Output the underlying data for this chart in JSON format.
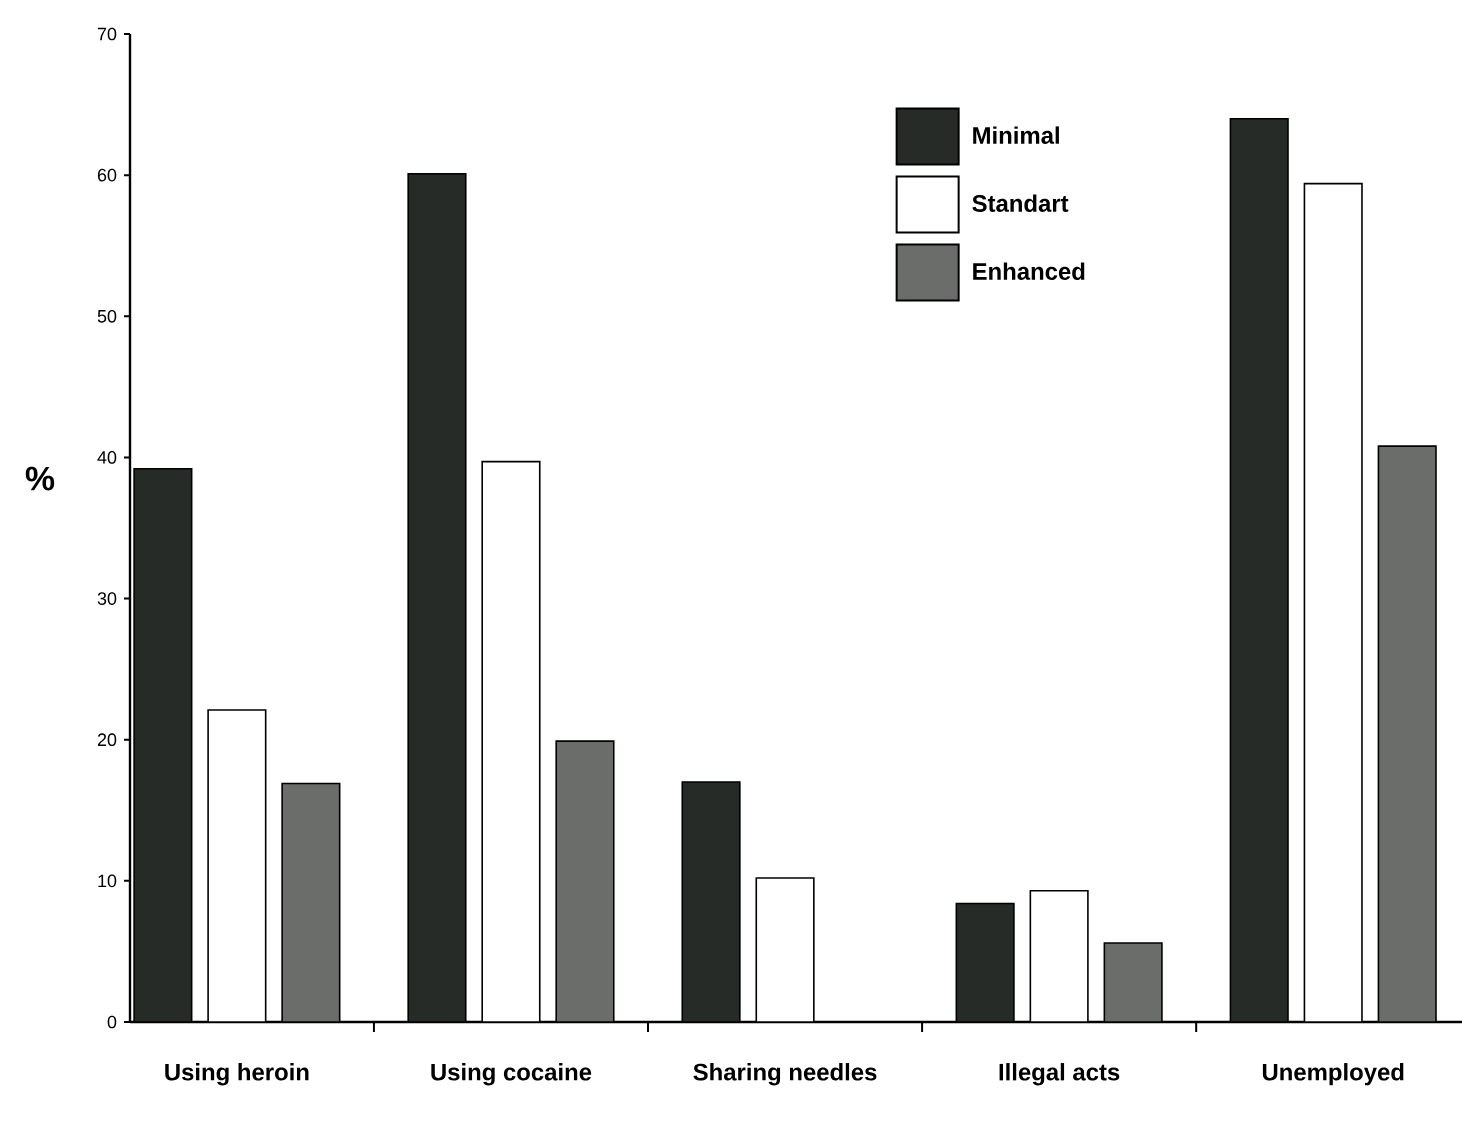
{
  "chart_data": {
    "type": "bar",
    "ylabel": "%",
    "categories": [
      "Using heroin",
      "Using cocaine",
      "Sharing needles",
      "Illegal acts",
      "Unemployed"
    ],
    "series": [
      {
        "name": "Minimal",
        "color": "#262b28",
        "values": [
          39.2,
          60.1,
          17.0,
          8.4,
          64.0
        ]
      },
      {
        "name": "Standart",
        "color": "#ffffff",
        "values": [
          22.1,
          39.7,
          10.2,
          9.3,
          59.4
        ]
      },
      {
        "name": "Enhanced",
        "color": "#6b6d6b",
        "values": [
          16.9,
          19.9,
          null,
          5.6,
          40.8
        ]
      }
    ],
    "ylim": [
      0,
      70
    ],
    "yticks": [
      0,
      10,
      20,
      30,
      40,
      50,
      60,
      70
    ],
    "grid": false,
    "legend": "top right"
  }
}
